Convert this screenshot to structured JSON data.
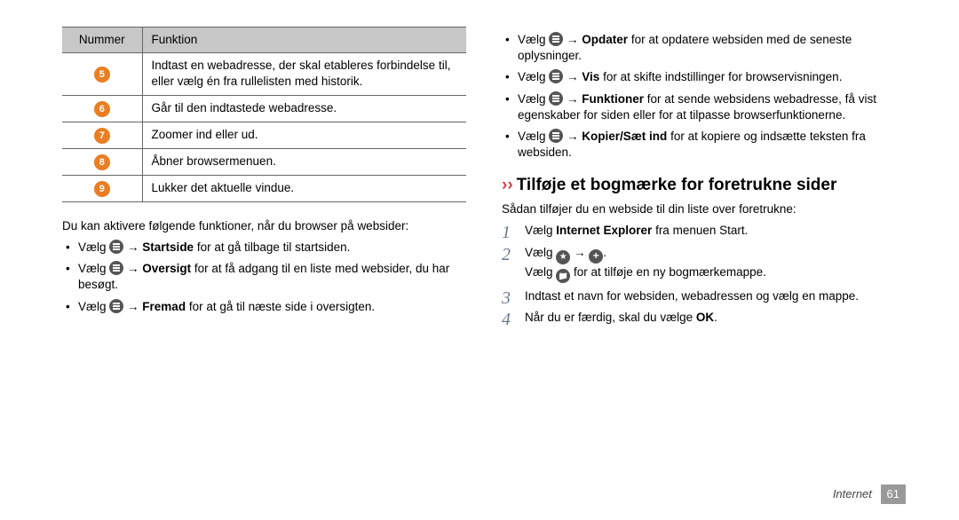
{
  "table": {
    "headers": [
      "Nummer",
      "Funktion"
    ],
    "rows": [
      {
        "num": "5",
        "desc": "Indtast en webadresse, der skal etableres forbindelse til, eller vælg én fra rullelisten med historik."
      },
      {
        "num": "6",
        "desc": "Går til den indtastede webadresse."
      },
      {
        "num": "7",
        "desc": "Zoomer ind eller ud."
      },
      {
        "num": "8",
        "desc": "Åbner browsermenuen."
      },
      {
        "num": "9",
        "desc": "Lukker det aktuelle vindue."
      }
    ]
  },
  "col1": {
    "intro": "Du kan aktivere følgende funktioner, når du browser på websider:",
    "b1_pre": "Vælg ",
    "b1_bold": "Startside",
    "b1_post": " for at gå tilbage til startsiden.",
    "b2_pre": "Vælg ",
    "b2_bold": "Oversigt",
    "b2_post": " for at få adgang til en liste med websider, du har besøgt.",
    "b3_pre": "Vælg ",
    "b3_bold": "Fremad",
    "b3_post": " for at gå til næste side i oversigten."
  },
  "col2": {
    "b4_pre": "Vælg ",
    "b4_bold": "Opdater",
    "b4_post": " for at opdatere websiden med de seneste oplysninger.",
    "b5_pre": "Vælg ",
    "b5_bold": "Vis",
    "b5_post": " for at skifte indstillinger for browservisningen.",
    "b6_pre": "Vælg ",
    "b6_bold": "Funktioner",
    "b6_post": " for at sende websidens webadresse, få vist egenskaber for siden eller for at tilpasse browserfunktionerne.",
    "b7_pre": "Vælg ",
    "b7_bold": "Kopier/Sæt ind",
    "b7_post": " for at kopiere og indsætte teksten fra websiden.",
    "heading": "Tilføje et bogmærke for foretrukne sider",
    "sub": "Sådan tilføjer du en webside til din liste over foretrukne:",
    "s1_pre": "Vælg ",
    "s1_bold": "Internet Explorer",
    "s1_post": " fra menuen Start.",
    "s2_pre": "Vælg ",
    "s2_mid": " → ",
    "s2_post": ".",
    "s2b_pre": "Vælg ",
    "s2b_post": " for at tilføje en ny bogmærkemappe.",
    "s3": "Indtast et navn for websiden, webadressen og vælg en mappe.",
    "s4_pre": "Når du er færdig, skal du vælge ",
    "s4_bold": "OK",
    "s4_post": "."
  },
  "footer": {
    "section": "Internet",
    "page": "61"
  },
  "arrow": " → "
}
